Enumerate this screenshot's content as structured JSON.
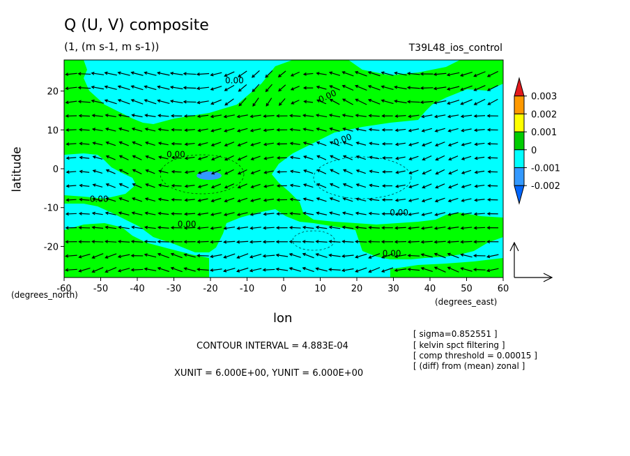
{
  "chart_data": {
    "type": "heatmap",
    "title": "Q (U, V) composite",
    "subtitle": "(1, (m s-1, m s-1))",
    "run_label": "T39L48_ios_control",
    "xlabel": "lon",
    "ylabel": "latitude",
    "xunit_label": "(degrees_east)",
    "yunit_label": "(degrees_north)",
    "xlim": [
      -60,
      60
    ],
    "ylim": [
      -28,
      28
    ],
    "x_ticks": [
      -60,
      -50,
      -40,
      -30,
      -20,
      -10,
      0,
      10,
      20,
      30,
      40,
      50,
      60
    ],
    "y_ticks": [
      -20,
      -10,
      0,
      10,
      20
    ],
    "x_tick_labels": [
      "-60",
      "-50",
      "-40",
      "-30",
      "-20",
      "-10",
      "0",
      "10",
      "20",
      "30",
      "40",
      "50",
      "60"
    ],
    "y_tick_labels": [
      "-20",
      "-10",
      "0",
      "10",
      "20"
    ],
    "colorbar": {
      "labels": [
        "0.003",
        "0.002",
        "0.001",
        "0",
        "-0.001",
        "-0.002"
      ],
      "colors": [
        "#e31a1c",
        "#ff9900",
        "#ffff00",
        "#00cc00",
        "#00ffff",
        "#3399ff",
        "#0066ff"
      ]
    },
    "fill_colors": {
      "positive": "#00ff00",
      "negative": "#00ffff",
      "strong_negative": "#3399ff"
    },
    "contour_labels": [
      "0.00",
      "0.00",
      "0.00",
      "0.00",
      "0.00",
      "0.00",
      "0.00",
      "0.00"
    ],
    "contour_interval": "CONTOUR INTERVAL = 4.883E-04",
    "vector_units": "XUNIT = 6.000E+00, YUNIT = 6.000E+00",
    "notes": [
      "[ sigma=0.852551 ]",
      "[ kelvin spct filtering ]",
      "[ comp threshold = 0.00015 ]",
      "[ (diff) from (mean) zonal ]"
    ]
  }
}
